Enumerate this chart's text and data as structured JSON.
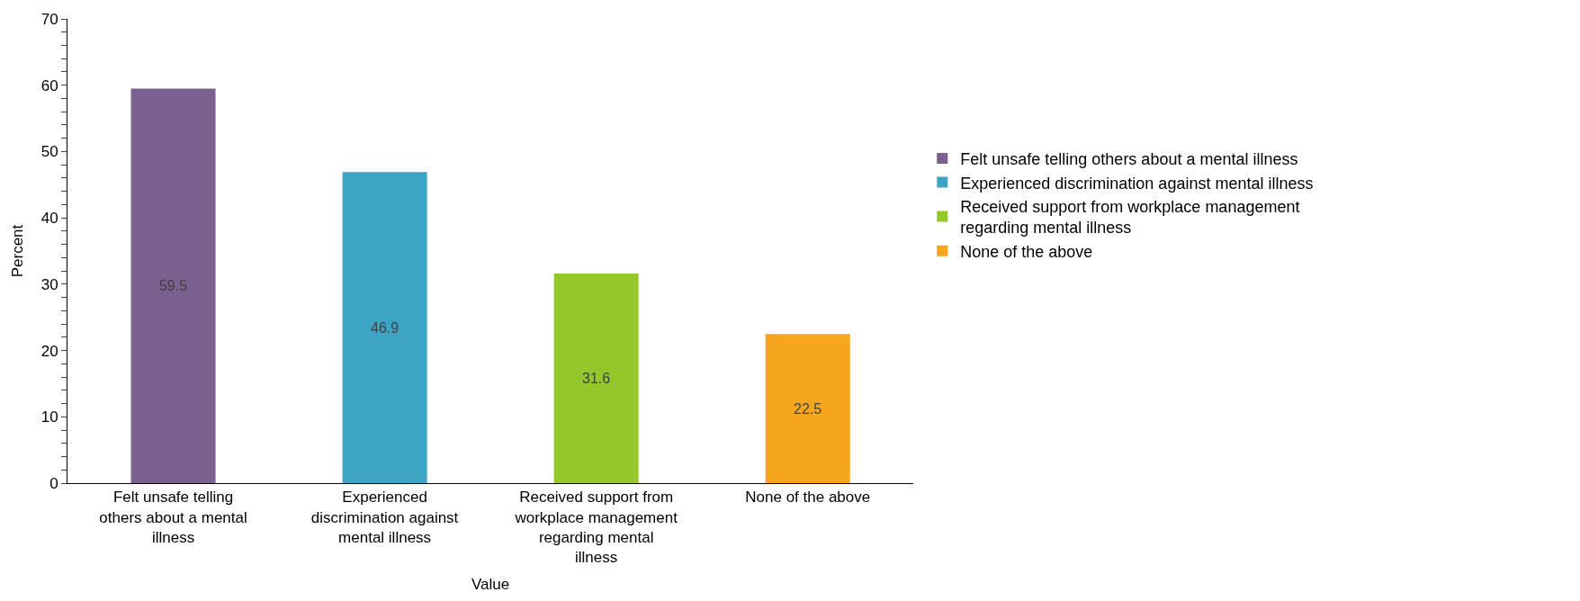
{
  "chart_data": {
    "type": "bar",
    "xlabel": "Value",
    "ylabel": "Percent",
    "categories": [
      "Felt unsafe telling others about a mental illness",
      "Experienced discrimination against mental illness",
      "Received support from workplace management regarding mental illness",
      "None of the above"
    ],
    "series": [
      {
        "name": "Felt unsafe telling others about a mental illness",
        "color": "#7b6190",
        "values": [
          59.5,
          null,
          null,
          null
        ]
      },
      {
        "name": "Experienced discrimination against mental illness",
        "color": "#3ea4c4",
        "values": [
          null,
          46.9,
          null,
          null
        ]
      },
      {
        "name": "Received support from workplace management regarding mental illness",
        "color": "#93c72a",
        "values": [
          null,
          null,
          31.6,
          null
        ]
      },
      {
        "name": "None of the above",
        "color": "#f5a61d",
        "values": [
          null,
          null,
          null,
          22.5
        ]
      }
    ],
    "ylim": [
      0,
      70
    ],
    "yticks": [
      0,
      {
        "value": 2,
        "label": null
      },
      {
        "value": 4,
        "label": null
      },
      {
        "value": 6,
        "label": null
      },
      {
        "value": 8,
        "label": null
      },
      10,
      {
        "value": 12,
        "label": null
      },
      {
        "value": 14,
        "label": null
      },
      {
        "value": 16,
        "label": null
      },
      {
        "value": 18,
        "label": null
      },
      20,
      {
        "value": 22,
        "label": null
      },
      {
        "value": 24,
        "label": null
      },
      {
        "value": 26,
        "label": null
      },
      {
        "value": 28,
        "label": null
      },
      30,
      {
        "value": 32,
        "label": null
      },
      {
        "value": 34,
        "label": null
      },
      {
        "value": 36,
        "label": null
      },
      {
        "value": 38,
        "label": null
      },
      40,
      {
        "value": 42,
        "label": null
      },
      {
        "value": 44,
        "label": null
      },
      {
        "value": 46,
        "label": null
      },
      {
        "value": 48,
        "label": null
      },
      50,
      {
        "value": 52,
        "label": null
      },
      {
        "value": 54,
        "label": null
      },
      {
        "value": 56,
        "label": null
      },
      {
        "value": 58,
        "label": null
      },
      60,
      {
        "value": 62,
        "label": null
      },
      {
        "value": 64,
        "label": null
      },
      {
        "value": 66,
        "label": null
      },
      {
        "value": 68,
        "label": null
      },
      70
    ],
    "data_labels": true,
    "legend": "right"
  }
}
